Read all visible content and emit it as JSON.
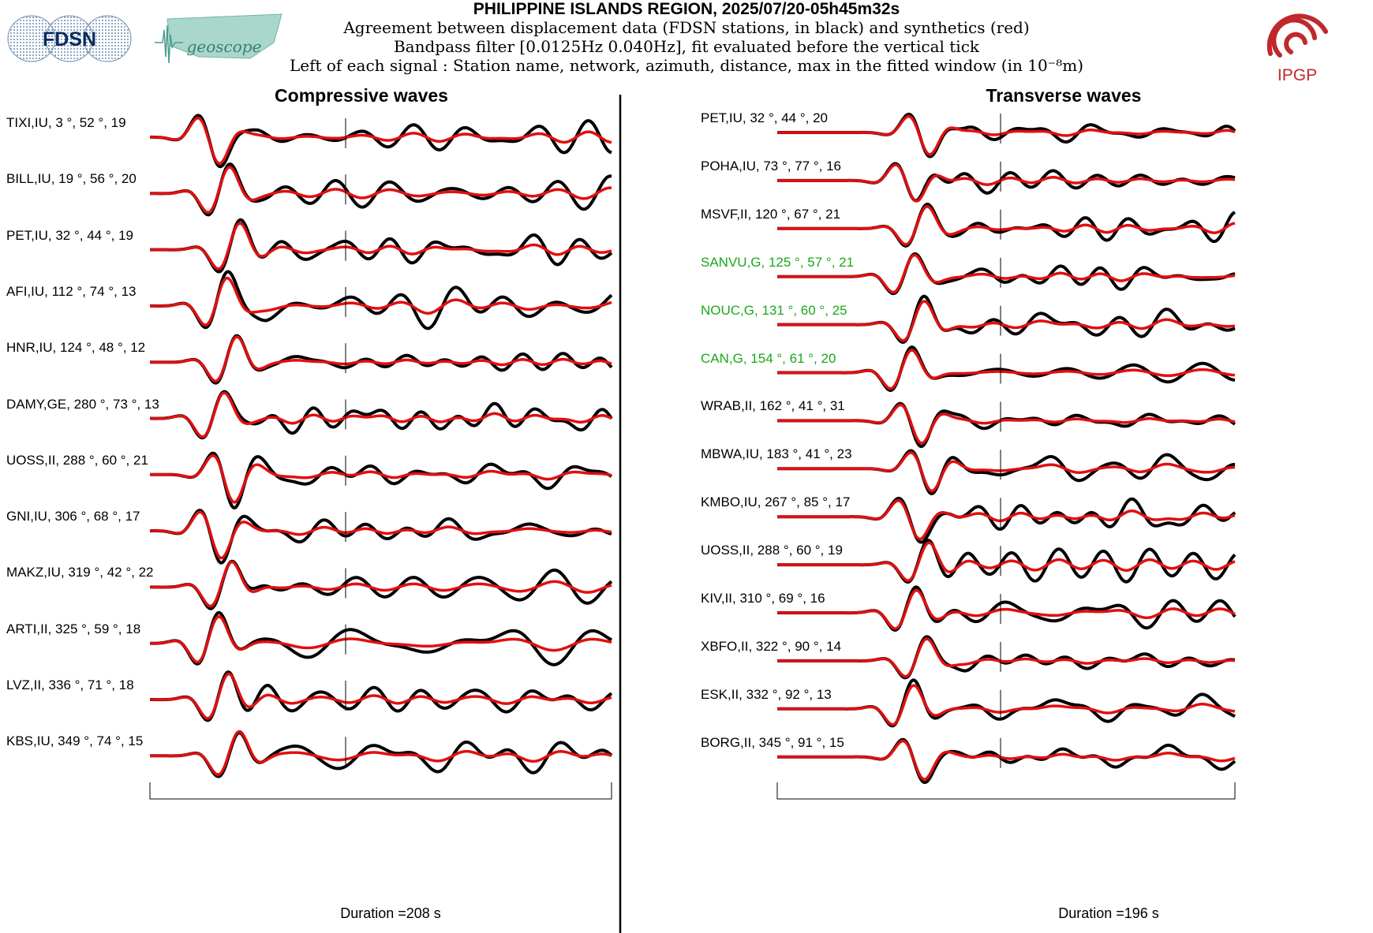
{
  "header": {
    "title": "PHILIPPINE ISLANDS REGION, 2025/07/20-05h45m32s",
    "line1": "Agreement between displacement data (FDSN stations, in black) and synthetics (red)",
    "line2": "Bandpass filter [0.0125Hz 0.040Hz], fit evaluated before the vertical tick",
    "line3": "Left of each signal : Station name, network, azimuth, distance, max in the fitted window (in 10⁻⁸m)"
  },
  "logos": {
    "fdsn": "FDSN",
    "geoscope": "geoscope",
    "ipgp": "IPGP"
  },
  "colors": {
    "data": "#000000",
    "synthetic": "#e01010",
    "highlight_station": "#1aa81a",
    "ipgp": "#c0282c"
  },
  "chart_data": [
    {
      "type": "line",
      "title": "Compressive waves",
      "duration_label": "Duration =208 s",
      "series": [
        {
          "name": "data (FDSN stations)",
          "color": "#000000"
        },
        {
          "name": "synthetics",
          "color": "#e01010"
        }
      ],
      "stations": [
        {
          "label": "TIXI,IU, 3  °, 52  °, 19",
          "highlight": false,
          "seed": 1
        },
        {
          "label": "BILL,IU, 19  °, 56  °, 20",
          "highlight": false,
          "seed": 2
        },
        {
          "label": "PET,IU, 32  °, 44  °, 19",
          "highlight": false,
          "seed": 3
        },
        {
          "label": "AFI,IU, 112  °, 74  °, 13",
          "highlight": false,
          "seed": 4
        },
        {
          "label": "HNR,IU, 124  °, 48  °, 12",
          "highlight": false,
          "seed": 5
        },
        {
          "label": "DAMY,GE, 280  °, 73  °, 13",
          "highlight": false,
          "seed": 6
        },
        {
          "label": "UOSS,II, 288  °, 60  °, 21",
          "highlight": false,
          "seed": 7
        },
        {
          "label": "GNI,IU, 306  °, 68  °, 17",
          "highlight": false,
          "seed": 8
        },
        {
          "label": "MAKZ,IU, 319  °, 42  °, 22",
          "highlight": false,
          "seed": 9
        },
        {
          "label": "ARTI,II, 325  °, 59  °, 18",
          "highlight": false,
          "seed": 10
        },
        {
          "label": "LVZ,II, 336  °, 71  °, 18",
          "highlight": false,
          "seed": 11
        },
        {
          "label": "KBS,IU, 349  °, 74  °, 15",
          "highlight": false,
          "seed": 12
        }
      ]
    },
    {
      "type": "line",
      "title": "Transverse waves",
      "duration_label": "Duration =196 s",
      "series": [
        {
          "name": "data (FDSN stations)",
          "color": "#000000"
        },
        {
          "name": "synthetics",
          "color": "#e01010"
        }
      ],
      "stations": [
        {
          "label": "PET,IU, 32  °, 44  °, 20",
          "highlight": false,
          "seed": 21
        },
        {
          "label": "POHA,IU, 73  °, 77  °, 16",
          "highlight": false,
          "seed": 22
        },
        {
          "label": "MSVF,II, 120  °, 67  °, 21",
          "highlight": false,
          "seed": 23
        },
        {
          "label": "SANVU,G, 125  °, 57  °, 21",
          "highlight": true,
          "seed": 24
        },
        {
          "label": "NOUC,G, 131  °, 60  °, 25",
          "highlight": true,
          "seed": 25
        },
        {
          "label": "CAN,G, 154  °, 61  °, 20",
          "highlight": true,
          "seed": 26
        },
        {
          "label": "WRAB,II, 162  °, 41  °, 31",
          "highlight": false,
          "seed": 27
        },
        {
          "label": "MBWA,IU, 183  °, 41  °, 23",
          "highlight": false,
          "seed": 28
        },
        {
          "label": "KMBO,IU, 267  °, 85  °, 17",
          "highlight": false,
          "seed": 29
        },
        {
          "label": "UOSS,II, 288  °, 60  °, 19",
          "highlight": false,
          "seed": 30
        },
        {
          "label": "KIV,II, 310  °, 69  °, 16",
          "highlight": false,
          "seed": 31
        },
        {
          "label": "XBFO,II, 322  °, 90  °, 14",
          "highlight": false,
          "seed": 32
        },
        {
          "label": "ESK,II, 332  °, 92  °, 13",
          "highlight": false,
          "seed": 33
        },
        {
          "label": "BORG,II, 345  °, 91  °, 15",
          "highlight": false,
          "seed": 34
        }
      ]
    }
  ]
}
